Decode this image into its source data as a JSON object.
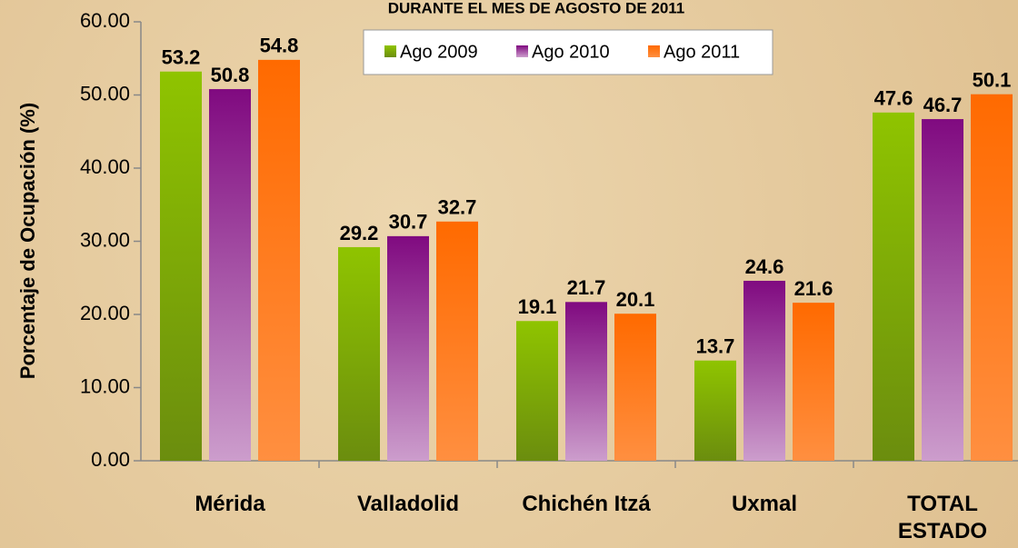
{
  "chart_data": {
    "type": "bar",
    "title": "DURANTE EL MES DE AGOSTO DE 2011",
    "y_label": "Porcentaje de Ocupación (%)",
    "categories": [
      "Mérida",
      "Valladolid",
      "Chichén Itzá",
      "Uxmal",
      "TOTAL ESTADO"
    ],
    "series": [
      {
        "name": "Ago 2009",
        "color": "#8fc400",
        "values": [
          53.2,
          29.2,
          19.1,
          13.7,
          47.6
        ]
      },
      {
        "name": "Ago 2010",
        "color": "#800a80",
        "values": [
          50.8,
          30.7,
          21.7,
          24.6,
          46.7
        ]
      },
      {
        "name": "Ago 2011",
        "color": "#ff6a00",
        "values": [
          54.8,
          32.7,
          20.1,
          21.6,
          50.1
        ]
      }
    ],
    "ylim": [
      0,
      60
    ],
    "yticks": [
      {
        "value": 0,
        "label": "0.00"
      },
      {
        "value": 10,
        "label": "10.00"
      },
      {
        "value": 20,
        "label": "20.00"
      },
      {
        "value": 30,
        "label": "30.00"
      },
      {
        "value": 40,
        "label": "40.00"
      },
      {
        "value": 50,
        "label": "50.00"
      },
      {
        "value": 60,
        "label": "60.00"
      }
    ],
    "legend": "top"
  }
}
